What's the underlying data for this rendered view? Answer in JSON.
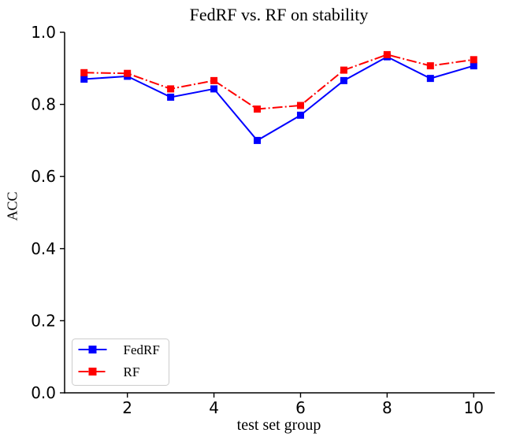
{
  "chart_data": {
    "type": "line",
    "title": "FedRF vs. RF on stability",
    "xlabel": "test set group",
    "ylabel": "ACC",
    "x": [
      1,
      2,
      3,
      4,
      5,
      6,
      7,
      8,
      9,
      10
    ],
    "series": [
      {
        "name": "FedRF",
        "color": "#0000ff",
        "linestyle": "solid",
        "marker": "square",
        "values": [
          0.87,
          0.878,
          0.82,
          0.843,
          0.7,
          0.77,
          0.866,
          0.932,
          0.872,
          0.907
        ]
      },
      {
        "name": "RF",
        "color": "#ff0000",
        "linestyle": "dashdot",
        "marker": "square",
        "values": [
          0.888,
          0.886,
          0.843,
          0.866,
          0.787,
          0.797,
          0.895,
          0.938,
          0.907,
          0.924
        ]
      }
    ],
    "xlim": [
      0.55,
      10.45
    ],
    "ylim": [
      0.0,
      1.0
    ],
    "xticks": [
      2,
      4,
      6,
      8,
      10
    ],
    "xtick_labels": [
      "2",
      "4",
      "6",
      "8",
      "10"
    ],
    "yticks": [
      0.0,
      0.2,
      0.4,
      0.6,
      0.8,
      1.0
    ],
    "ytick_labels": [
      "0.0",
      "0.2",
      "0.4",
      "0.6",
      "0.8",
      "1.0"
    ],
    "grid": false,
    "legend": {
      "position": "lower-left",
      "entries": [
        "FedRF",
        "RF"
      ]
    },
    "axis_color": "#000000",
    "background_color": "#ffffff",
    "legend_border_color": "#cccccc"
  }
}
